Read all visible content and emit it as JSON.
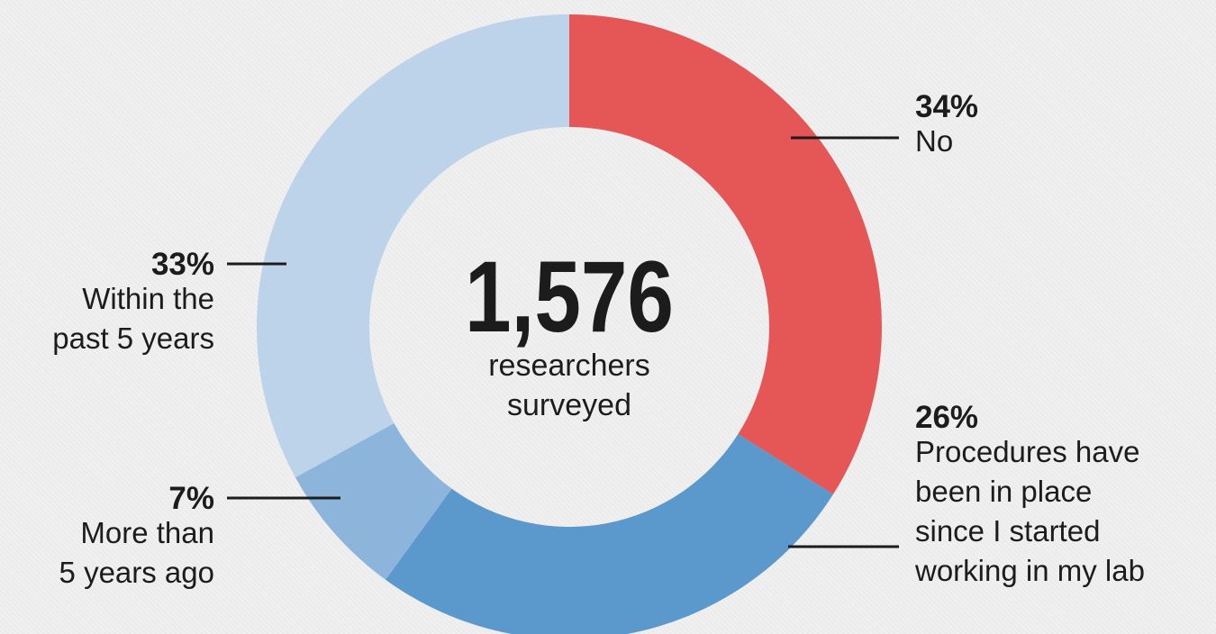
{
  "chart_data": {
    "type": "pie",
    "variant": "donut",
    "center": {
      "value": "1,576",
      "caption_lines": [
        "researchers",
        "surveyed"
      ]
    },
    "slices": [
      {
        "percent": 34,
        "percent_label": "34%",
        "label_lines": [
          "No"
        ],
        "color": "#e55656",
        "label_side": "right"
      },
      {
        "percent": 26,
        "percent_label": "26%",
        "label_lines": [
          "Procedures have",
          "been in place",
          "since I started",
          "working in my lab"
        ],
        "color": "#5b98cb",
        "label_side": "right"
      },
      {
        "percent": 7,
        "percent_label": "7%",
        "label_lines": [
          "More than",
          "5 years ago"
        ],
        "color": "#8db4da",
        "label_side": "left"
      },
      {
        "percent": 33,
        "percent_label": "33%",
        "label_lines": [
          "Within the",
          "past 5 years"
        ],
        "color": "#bcd3ea",
        "label_side": "left"
      }
    ]
  }
}
